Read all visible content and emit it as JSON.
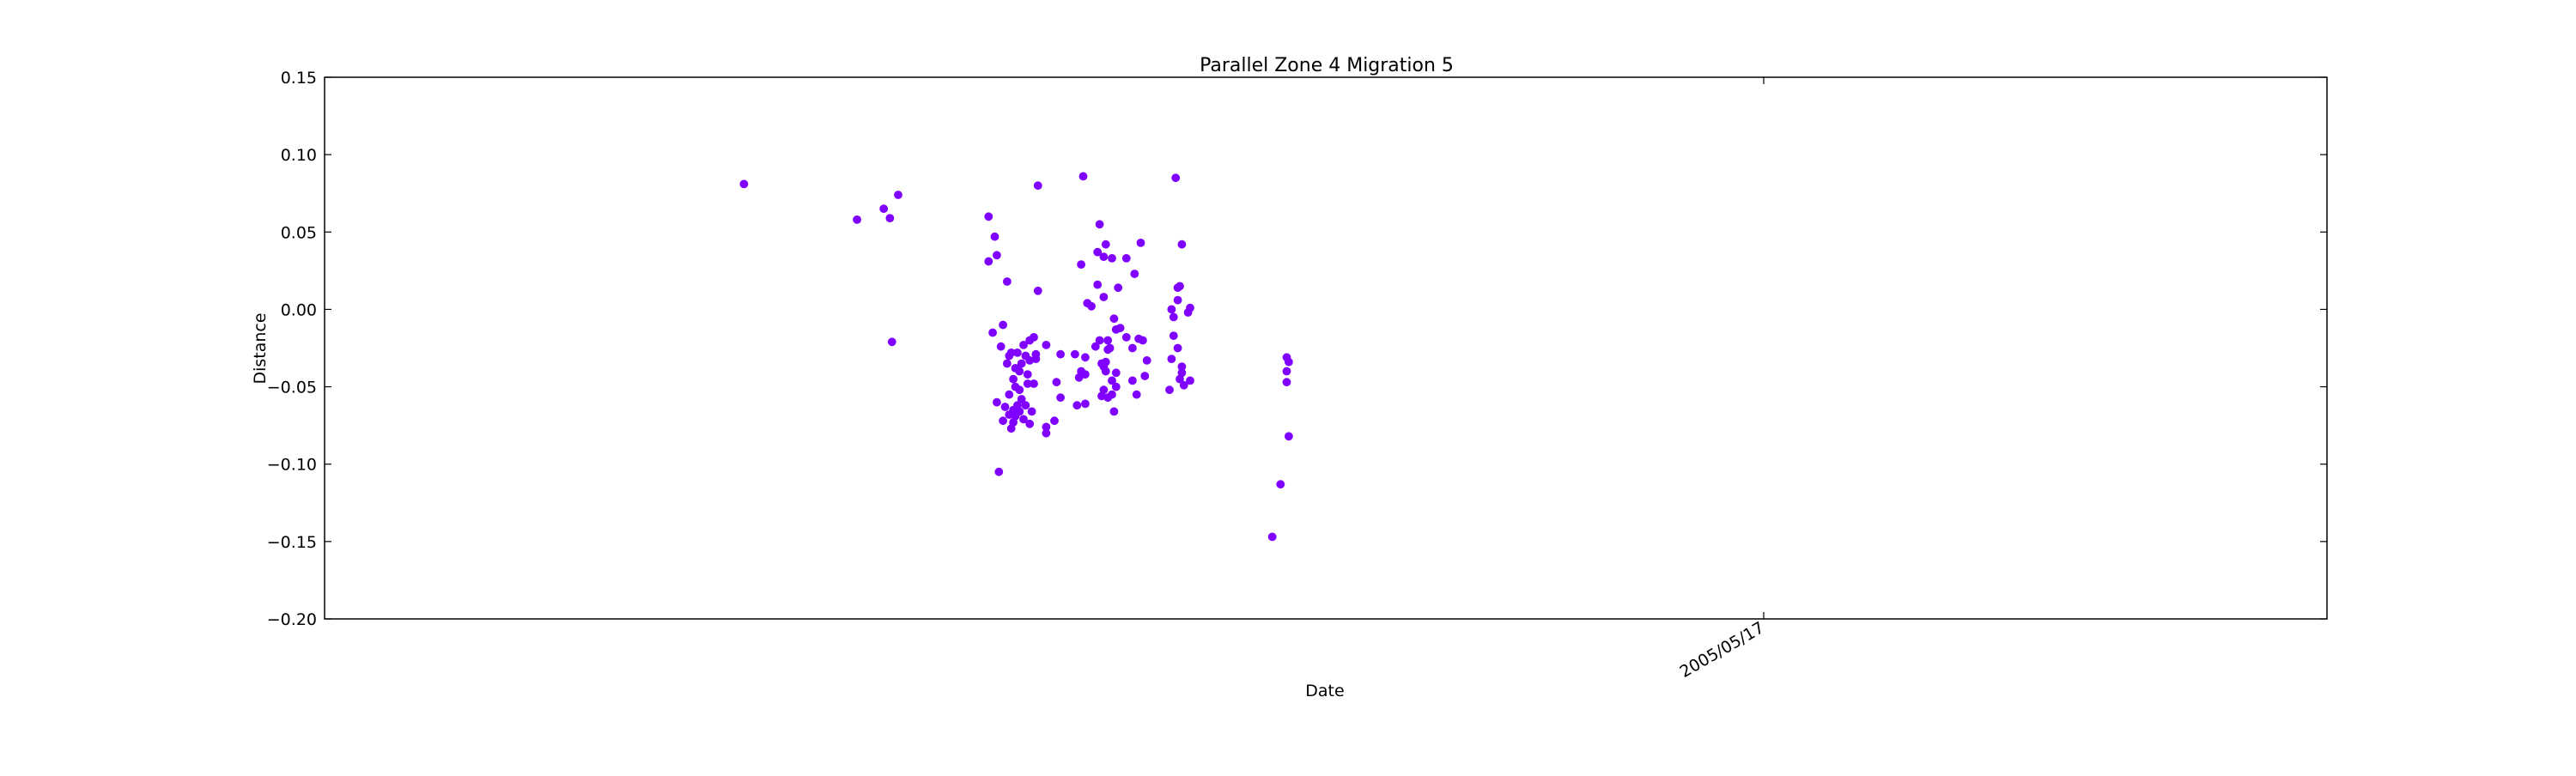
{
  "chart_data": {
    "type": "scatter",
    "title": "Parallel Zone 4 Migration 5",
    "xlabel": "Date",
    "ylabel": "Distance",
    "ylim": [
      -0.2,
      0.15
    ],
    "y_ticks": [
      "0.15",
      "0.10",
      "0.05",
      "0.00",
      "−0.05",
      "−0.10",
      "−0.15",
      "−0.20"
    ],
    "y_tick_values": [
      0.15,
      0.1,
      0.05,
      0.0,
      -0.05,
      -0.1,
      -0.15,
      -0.2
    ],
    "xlim": [
      "2003/06/17",
      "2006/02/15"
    ],
    "x_ticks": [
      "2005/05/17"
    ],
    "x_tick_values": [
      "2005/05/17"
    ],
    "grid": false,
    "marker_color": "#7f00ff",
    "points": [
      {
        "x": "2004/01/07",
        "y": 0.081
      },
      {
        "x": "2004/03/02",
        "y": 0.058
      },
      {
        "x": "2004/03/15",
        "y": 0.065
      },
      {
        "x": "2004/03/18",
        "y": 0.059
      },
      {
        "x": "2004/03/19",
        "y": -0.021
      },
      {
        "x": "2004/03/22",
        "y": 0.074
      },
      {
        "x": "2004/05/05",
        "y": 0.06
      },
      {
        "x": "2004/05/05",
        "y": 0.031
      },
      {
        "x": "2004/05/08",
        "y": 0.047
      },
      {
        "x": "2004/05/09",
        "y": 0.035
      },
      {
        "x": "2004/05/07",
        "y": -0.015
      },
      {
        "x": "2004/05/09",
        "y": -0.06
      },
      {
        "x": "2004/05/10",
        "y": -0.105
      },
      {
        "x": "2004/05/11",
        "y": -0.024
      },
      {
        "x": "2004/05/12",
        "y": -0.01
      },
      {
        "x": "2004/05/13",
        "y": -0.063
      },
      {
        "x": "2004/05/12",
        "y": -0.072
      },
      {
        "x": "2004/05/14",
        "y": 0.018
      },
      {
        "x": "2004/05/14",
        "y": -0.035
      },
      {
        "x": "2004/05/15",
        "y": -0.03
      },
      {
        "x": "2004/05/15",
        "y": -0.055
      },
      {
        "x": "2004/05/15",
        "y": -0.068
      },
      {
        "x": "2004/05/16",
        "y": -0.077
      },
      {
        "x": "2004/05/16",
        "y": -0.028
      },
      {
        "x": "2004/05/17",
        "y": -0.045
      },
      {
        "x": "2004/05/17",
        "y": -0.065
      },
      {
        "x": "2004/05/17",
        "y": -0.073
      },
      {
        "x": "2004/05/18",
        "y": -0.05
      },
      {
        "x": "2004/05/18",
        "y": -0.038
      },
      {
        "x": "2004/05/18",
        "y": -0.069
      },
      {
        "x": "2004/05/19",
        "y": -0.028
      },
      {
        "x": "2004/05/19",
        "y": -0.062
      },
      {
        "x": "2004/05/20",
        "y": -0.04
      },
      {
        "x": "2004/05/20",
        "y": -0.052
      },
      {
        "x": "2004/05/20",
        "y": -0.066
      },
      {
        "x": "2004/05/21",
        "y": -0.035
      },
      {
        "x": "2004/05/21",
        "y": -0.058
      },
      {
        "x": "2004/05/22",
        "y": -0.023
      },
      {
        "x": "2004/05/22",
        "y": -0.071
      },
      {
        "x": "2004/05/23",
        "y": -0.03
      },
      {
        "x": "2004/05/23",
        "y": -0.062
      },
      {
        "x": "2004/05/24",
        "y": -0.042
      },
      {
        "x": "2004/05/24",
        "y": -0.048
      },
      {
        "x": "2004/05/25",
        "y": -0.033
      },
      {
        "x": "2004/05/25",
        "y": -0.074
      },
      {
        "x": "2004/05/25",
        "y": -0.02
      },
      {
        "x": "2004/05/26",
        "y": -0.066
      },
      {
        "x": "2004/05/27",
        "y": -0.018
      },
      {
        "x": "2004/05/27",
        "y": -0.048
      },
      {
        "x": "2004/05/28",
        "y": -0.032
      },
      {
        "x": "2004/05/28",
        "y": -0.029
      },
      {
        "x": "2004/05/29",
        "y": 0.08
      },
      {
        "x": "2004/05/29",
        "y": 0.012
      },
      {
        "x": "2004/06/02",
        "y": -0.023
      },
      {
        "x": "2004/06/02",
        "y": -0.076
      },
      {
        "x": "2004/06/02",
        "y": -0.08
      },
      {
        "x": "2004/06/06",
        "y": -0.072
      },
      {
        "x": "2004/06/07",
        "y": -0.047
      },
      {
        "x": "2004/06/09",
        "y": -0.029
      },
      {
        "x": "2004/06/09",
        "y": -0.057
      },
      {
        "x": "2004/06/16",
        "y": -0.029
      },
      {
        "x": "2004/06/17",
        "y": -0.062
      },
      {
        "x": "2004/06/18",
        "y": -0.044
      },
      {
        "x": "2004/06/19",
        "y": 0.029
      },
      {
        "x": "2004/06/19",
        "y": -0.04
      },
      {
        "x": "2004/06/20",
        "y": 0.086
      },
      {
        "x": "2004/06/21",
        "y": -0.031
      },
      {
        "x": "2004/06/21",
        "y": -0.061
      },
      {
        "x": "2004/06/21",
        "y": -0.042
      },
      {
        "x": "2004/06/22",
        "y": 0.004
      },
      {
        "x": "2004/06/24",
        "y": 0.002
      },
      {
        "x": "2004/06/26",
        "y": -0.024
      },
      {
        "x": "2004/06/27",
        "y": 0.037
      },
      {
        "x": "2004/06/27",
        "y": 0.016
      },
      {
        "x": "2004/06/28",
        "y": -0.02
      },
      {
        "x": "2004/06/28",
        "y": 0.055
      },
      {
        "x": "2004/06/29",
        "y": -0.035
      },
      {
        "x": "2004/06/29",
        "y": -0.056
      },
      {
        "x": "2004/06/30",
        "y": 0.034
      },
      {
        "x": "2004/06/30",
        "y": 0.008
      },
      {
        "x": "2004/06/30",
        "y": -0.037
      },
      {
        "x": "2004/06/30",
        "y": -0.052
      },
      {
        "x": "2004/07/01",
        "y": 0.042
      },
      {
        "x": "2004/07/01",
        "y": -0.034
      },
      {
        "x": "2004/07/01",
        "y": -0.04
      },
      {
        "x": "2004/07/02",
        "y": -0.026
      },
      {
        "x": "2004/07/02",
        "y": -0.02
      },
      {
        "x": "2004/07/02",
        "y": -0.057
      },
      {
        "x": "2004/07/03",
        "y": -0.025
      },
      {
        "x": "2004/07/04",
        "y": 0.033
      },
      {
        "x": "2004/07/04",
        "y": -0.055
      },
      {
        "x": "2004/07/04",
        "y": -0.046
      },
      {
        "x": "2004/07/05",
        "y": -0.066
      },
      {
        "x": "2004/07/05",
        "y": -0.006
      },
      {
        "x": "2004/07/06",
        "y": -0.041
      },
      {
        "x": "2004/07/06",
        "y": -0.05
      },
      {
        "x": "2004/07/06",
        "y": -0.013
      },
      {
        "x": "2004/07/07",
        "y": 0.014
      },
      {
        "x": "2004/07/08",
        "y": -0.012
      },
      {
        "x": "2004/07/11",
        "y": -0.018
      },
      {
        "x": "2004/07/11",
        "y": 0.033
      },
      {
        "x": "2004/07/14",
        "y": -0.025
      },
      {
        "x": "2004/07/14",
        "y": -0.046
      },
      {
        "x": "2004/07/15",
        "y": 0.023
      },
      {
        "x": "2004/07/16",
        "y": -0.055
      },
      {
        "x": "2004/07/17",
        "y": -0.019
      },
      {
        "x": "2004/07/18",
        "y": 0.043
      },
      {
        "x": "2004/07/19",
        "y": -0.02
      },
      {
        "x": "2004/07/20",
        "y": -0.043
      },
      {
        "x": "2004/07/21",
        "y": -0.033
      },
      {
        "x": "2004/08/01",
        "y": -0.052
      },
      {
        "x": "2004/08/02",
        "y": -0.032
      },
      {
        "x": "2004/08/02",
        "y": 0.0
      },
      {
        "x": "2004/08/03",
        "y": -0.005
      },
      {
        "x": "2004/08/03",
        "y": -0.017
      },
      {
        "x": "2004/08/04",
        "y": 0.085
      },
      {
        "x": "2004/08/05",
        "y": 0.014
      },
      {
        "x": "2004/08/05",
        "y": -0.025
      },
      {
        "x": "2004/08/05",
        "y": 0.006
      },
      {
        "x": "2004/08/06",
        "y": 0.015
      },
      {
        "x": "2004/08/06",
        "y": -0.045
      },
      {
        "x": "2004/08/07",
        "y": 0.042
      },
      {
        "x": "2004/08/07",
        "y": -0.037
      },
      {
        "x": "2004/08/07",
        "y": -0.041
      },
      {
        "x": "2004/08/08",
        "y": -0.049
      },
      {
        "x": "2004/08/10",
        "y": -0.002
      },
      {
        "x": "2004/08/11",
        "y": 0.001
      },
      {
        "x": "2004/08/11",
        "y": -0.046
      },
      {
        "x": "2004/09/20",
        "y": -0.147
      },
      {
        "x": "2004/09/24",
        "y": -0.113
      },
      {
        "x": "2004/09/27",
        "y": -0.031
      },
      {
        "x": "2004/09/27",
        "y": -0.04
      },
      {
        "x": "2004/09/27",
        "y": -0.047
      },
      {
        "x": "2004/09/28",
        "y": -0.034
      },
      {
        "x": "2004/09/28",
        "y": -0.082
      }
    ]
  }
}
